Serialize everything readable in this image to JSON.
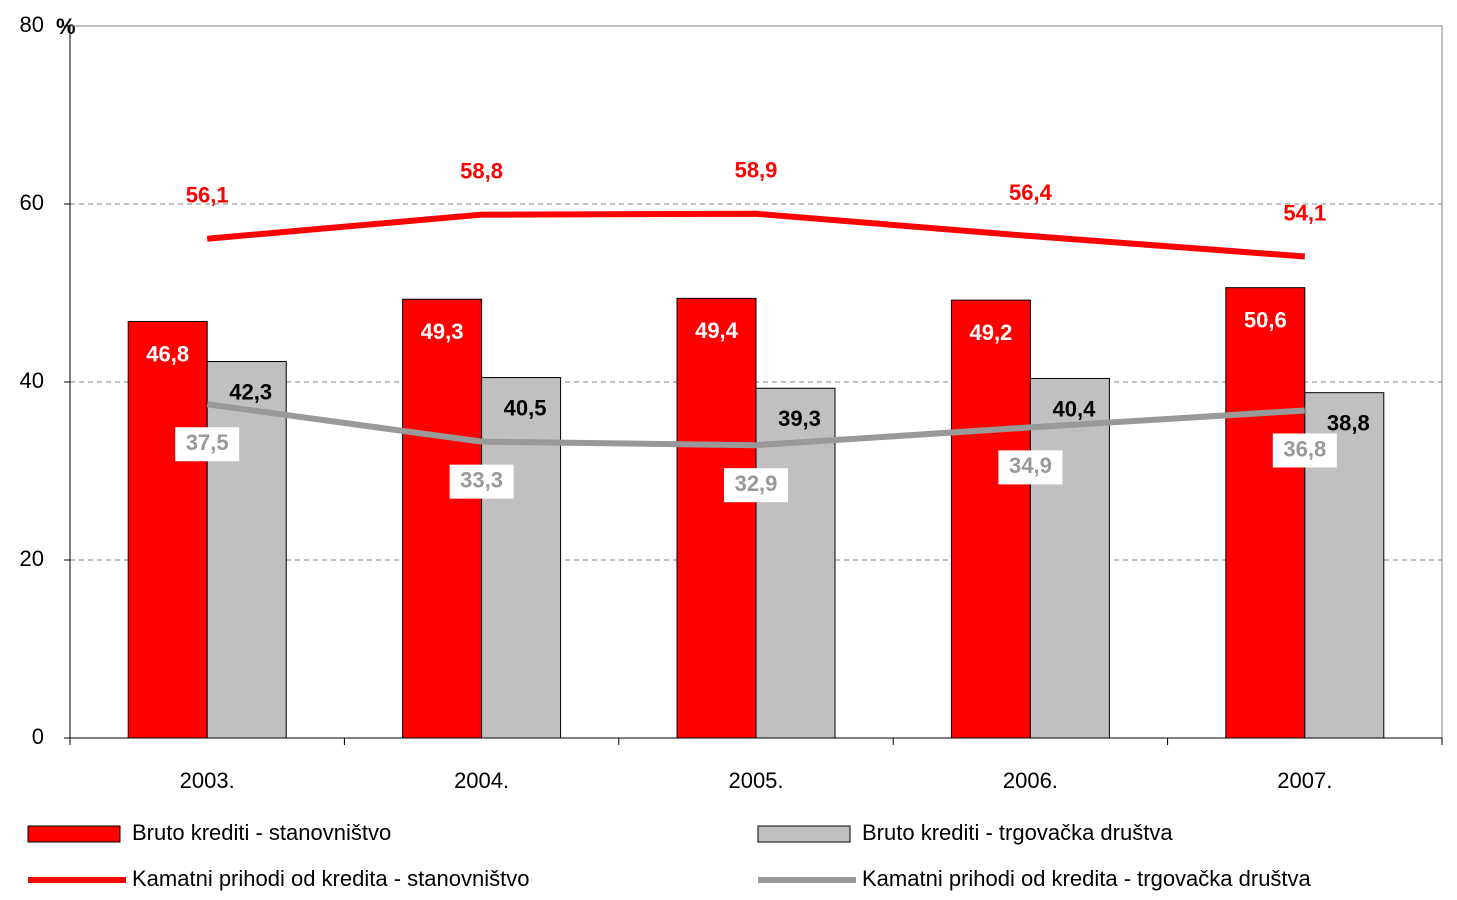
{
  "chart_data": {
    "type": "bar",
    "unit_label": "%",
    "categories": [
      "2003.",
      "2004.",
      "2005.",
      "2006.",
      "2007."
    ],
    "series": [
      {
        "name": "Bruto krediti - stanovništvo",
        "type": "bar",
        "color": "#ff0000",
        "label_color": "#ffffff",
        "values": [
          46.8,
          49.3,
          49.4,
          49.2,
          50.6
        ],
        "value_labels": [
          "46,8",
          "49,3",
          "49,4",
          "49,2",
          "50,6"
        ]
      },
      {
        "name": "Bruto krediti - trgovačka društva",
        "type": "bar",
        "color": "#c0c0c0",
        "label_color": "#000000",
        "values": [
          42.3,
          40.5,
          39.3,
          40.4,
          38.8
        ],
        "value_labels": [
          "42,3",
          "40,5",
          "39,3",
          "40,4",
          "38,8"
        ]
      },
      {
        "name": "Kamatni prihodi od kredita - stanovništvo",
        "type": "line",
        "color": "#ff0000",
        "label_color": "#ff0000",
        "values": [
          56.1,
          58.8,
          58.9,
          56.4,
          54.1
        ],
        "value_labels": [
          "56,1",
          "58,8",
          "58,9",
          "56,4",
          "54,1"
        ]
      },
      {
        "name": "Kamatni prihodi od kredita - trgovačka društva",
        "type": "line",
        "color": "#999999",
        "label_color": "#999999",
        "values": [
          37.5,
          33.3,
          32.9,
          34.9,
          36.8
        ],
        "value_labels": [
          "37,5",
          "33,3",
          "32,9",
          "34,9",
          "36,8"
        ]
      }
    ],
    "ylim": [
      0,
      80
    ],
    "yticks": [
      0,
      20,
      40,
      60,
      80
    ],
    "grid": true
  }
}
